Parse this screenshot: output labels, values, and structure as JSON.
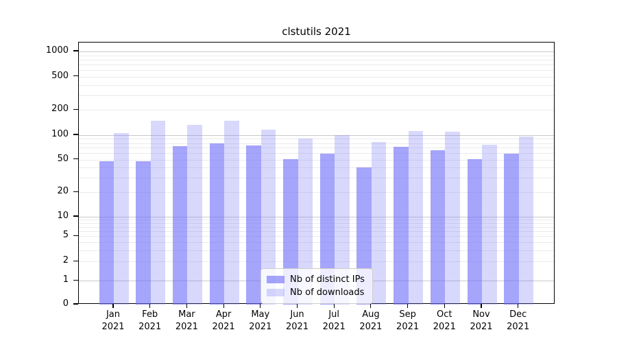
{
  "chart_data": {
    "type": "bar",
    "title": "clstutils 2021",
    "categories": [
      "Jan",
      "Feb",
      "Mar",
      "Apr",
      "May",
      "Jun",
      "Jul",
      "Aug",
      "Sep",
      "Oct",
      "Nov",
      "Dec"
    ],
    "category_year": "2021",
    "series": [
      {
        "name": "Nb of distinct IPs",
        "color": "rgba(110,110,250,0.62)",
        "values": [
          48,
          48,
          74,
          79,
          75,
          51,
          59,
          40,
          72,
          65,
          51,
          59
        ]
      },
      {
        "name": "Nb of downloads",
        "color": "rgba(125,125,250,0.30)",
        "values": [
          106,
          150,
          134,
          149,
          116,
          91,
          101,
          82,
          113,
          110,
          76,
          96
        ]
      }
    ],
    "xlabel": "",
    "ylabel": "",
    "yscale": "symlog",
    "yticks": [
      0,
      1,
      2,
      5,
      10,
      20,
      50,
      100,
      200,
      500,
      1000
    ],
    "ylim": [
      0,
      1280
    ],
    "grid": "horizontal, major and minor log gridlines",
    "legend_position": "lower center"
  },
  "colors": {
    "major_gridline": "#c9c9c9",
    "minor_gridline": "#ebebeb",
    "axis_spine": "#000000",
    "legend_border": "#cccccc",
    "background": "#ffffff"
  }
}
